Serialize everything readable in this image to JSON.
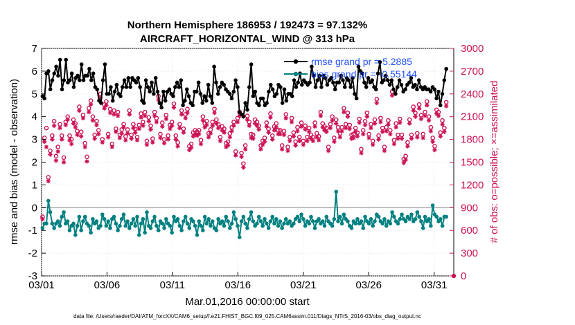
{
  "chart_data": {
    "type": "line",
    "title": [
      "Northern Hemisphere 186953 / 192473 = 97.132%",
      "AIRCRAFT_HORIZONTAL_WIND @ 313 hPa"
    ],
    "xlabel": "Mar.01,2016 00:00:00 start",
    "ylabel": "rmse and bias (model - observation)",
    "ylabel_right": "# of obs: o=possible; ×=assimilated",
    "x_ticks": [
      "03/01",
      "03/06",
      "03/11",
      "03/16",
      "03/21",
      "03/26",
      "03/31"
    ],
    "x_tick_days": [
      0,
      5,
      10,
      15,
      20,
      25,
      30
    ],
    "xlim_days": [
      0,
      31.5
    ],
    "ylim": [
      -3,
      7
    ],
    "y_ticks": [
      -3,
      -2,
      -1,
      0,
      1,
      2,
      3,
      4,
      5,
      6,
      7
    ],
    "ylim_right": [
      0,
      3000
    ],
    "y_ticks_right": [
      0,
      300,
      600,
      900,
      1200,
      1500,
      1800,
      2100,
      2400,
      2700,
      3000
    ],
    "footnote": "data file: /Users/raeder/DAI/ATM_forcXX/CAM6_setup/f.e21.FHIST_BGC.f09_025.CAM6assim.011/Diags_NTrS_2016-03/obs_diag_output.nc",
    "colors": {
      "rmse": "#000000",
      "bias": "#008080",
      "obs": "#cc1155",
      "zero": "#b0b0b0"
    },
    "series": [
      {
        "name": "rmse grand pr = 5.2885",
        "axis": "left",
        "values": [
          4.9,
          4.8,
          5.9,
          6.0,
          5.2,
          5.6,
          5.9,
          6.2,
          5.8,
          6.5,
          5.2,
          5.6,
          6.5,
          5.5,
          5.6,
          5.9,
          5.3,
          5.7,
          5.8,
          5.6,
          6.3,
          5.6,
          5.8,
          5.8,
          6.1,
          5.6,
          5.9,
          5.3,
          5.2,
          4.7,
          4.6,
          5.6,
          6.3,
          5.0,
          5.0,
          5.3,
          4.7,
          5.1,
          5.4,
          5.0,
          4.9,
          5.3,
          5.6,
          5.3,
          5.7,
          5.3,
          5.7,
          5.6,
          5.5,
          5.7,
          5.3,
          4.7,
          4.6,
          5.6,
          5.3,
          5.1,
          5.5,
          5.0,
          5.7,
          5.1,
          4.6,
          4.4,
          5.1,
          4.7,
          5.1,
          5.2,
          5.0,
          4.9,
          5.3,
          5.5,
          5.3,
          5.6,
          4.5,
          4.7,
          5.2,
          4.9,
          4.6,
          4.5,
          5.1,
          5.1,
          5.5,
          5.0,
          4.6,
          4.9,
          4.7,
          5.4,
          4.9,
          4.6,
          6.2,
          5.5,
          5.0,
          5.3,
          5.5,
          5.4,
          5.2,
          5.1,
          5.0,
          4.8,
          5.1,
          5.6,
          5.3,
          4.2,
          4.1,
          4.0,
          4.6,
          4.3,
          5.3,
          6.3,
          4.9,
          5.1,
          4.6,
          4.5,
          4.8,
          4.8,
          4.5,
          4.6,
          5.1,
          5.4,
          5.2,
          4.9,
          5.0,
          5.4,
          5.3,
          4.6,
          5.2,
          4.7,
          5.0,
          5.0,
          4.9,
          5.6,
          5.3,
          5.5,
          5.9,
          5.4,
          5.6,
          5.5,
          5.4,
          5.5,
          6.2,
          5.8,
          5.3,
          5.6,
          5.8,
          5.3,
          5.8,
          5.7,
          5.4,
          5.6,
          5.7,
          5.5,
          5.2,
          5.5,
          5.5,
          5.8,
          5.6,
          5.3,
          5.7,
          5.6,
          5.3,
          5.7,
          5.0,
          4.8,
          6.2,
          6.0,
          5.9,
          5.5,
          5.3,
          5.7,
          5.5,
          5.6,
          5.3,
          5.2,
          5.9,
          6.4,
          5.5,
          5.6,
          5.8,
          5.6,
          5.4,
          5.6,
          5.2,
          5.0,
          5.3,
          5.6,
          5.4,
          5.1,
          5.2,
          5.4,
          5.5,
          5.7,
          5.3,
          5.4,
          5.2,
          5.6,
          5.3,
          5.2,
          5.3,
          5.2,
          5.2,
          5.1,
          5.3,
          5.2,
          4.8,
          5.1,
          4.5,
          5.0,
          5.6,
          6.1
        ]
      },
      {
        "name": "bias grand pr = -0.55144",
        "axis": "left",
        "values": [
          -0.9,
          -0.7,
          -0.7,
          0.3,
          -0.2,
          -0.7,
          -0.9,
          -0.7,
          -0.6,
          -0.8,
          -0.4,
          -0.2,
          -0.7,
          -0.6,
          -1.0,
          -0.8,
          -0.7,
          -1.2,
          -0.8,
          -0.4,
          -1.0,
          -0.6,
          -0.4,
          -0.7,
          -0.8,
          -1.1,
          -0.5,
          -0.7,
          -0.6,
          -0.9,
          -0.8,
          -0.3,
          -0.5,
          -0.8,
          -0.6,
          -0.9,
          -0.5,
          -0.4,
          -0.7,
          -1.0,
          -0.8,
          -0.5,
          -0.3,
          -0.8,
          -0.6,
          -0.9,
          -0.7,
          -0.5,
          -0.8,
          -0.4,
          -1.2,
          -0.7,
          -0.5,
          -1.1,
          -0.2,
          -0.8,
          -0.9,
          -0.6,
          -0.4,
          -0.8,
          -1.0,
          -0.6,
          -0.7,
          -0.9,
          -0.5,
          -0.7,
          -0.8,
          -1.1,
          -0.4,
          -0.6,
          -0.5,
          -0.8,
          -1.0,
          -0.6,
          -0.4,
          -0.7,
          -0.9,
          -0.5,
          -0.6,
          -0.8,
          -1.2,
          -0.6,
          -0.8,
          -1.0,
          -0.4,
          -0.7,
          -0.5,
          -0.8,
          -0.6,
          -0.9,
          -1.0,
          -0.5,
          -0.7,
          -0.6,
          -0.8,
          -0.4,
          -0.6,
          -0.9,
          -0.7,
          -0.2,
          -0.5,
          -0.8,
          -1.3,
          -0.6,
          -0.4,
          -0.7,
          -0.9,
          -0.5,
          -0.2,
          -0.6,
          -0.8,
          -0.7,
          -0.4,
          -0.6,
          -0.8,
          -0.5,
          -0.7,
          -0.9,
          -0.6,
          -0.4,
          -0.7,
          -0.5,
          -0.8,
          -0.6,
          -0.9,
          -0.7,
          -0.5,
          -0.7,
          -0.6,
          -0.8,
          -0.7,
          -0.5,
          -0.4,
          -0.6,
          -0.3,
          -0.5,
          -0.8,
          -0.6,
          -0.7,
          -0.4,
          -0.6,
          -0.9,
          -0.6,
          -0.5,
          -0.7,
          -0.6,
          -0.8,
          -0.4,
          -0.6,
          -0.7,
          -0.8,
          -0.5,
          0.7,
          -0.6,
          -0.4,
          -0.7,
          -0.3,
          -0.5,
          -0.6,
          -0.8,
          -0.9,
          -0.6,
          -0.7,
          -0.5,
          -0.7,
          -0.6,
          -0.9,
          -0.4,
          -0.6,
          -0.7,
          -0.5,
          -0.8,
          -0.6,
          -0.3,
          -0.4,
          -0.6,
          -0.7,
          -0.5,
          -0.8,
          -0.6,
          -0.7,
          -0.2,
          -0.4,
          -0.6,
          -0.7,
          -0.5,
          -0.3,
          -0.5,
          -0.6,
          -0.4,
          -0.5,
          -0.3,
          -0.6,
          -0.5,
          -0.2,
          -0.4,
          -0.6,
          -0.9,
          -0.4,
          -0.6,
          -0.5,
          -0.8,
          0.1,
          -0.3,
          -0.4,
          -0.6,
          -0.5,
          -0.8,
          -0.4,
          -0.4
        ]
      },
      {
        "name": "obs possible",
        "axis": "right",
        "marker": "o",
        "values": [
          780,
          1820,
          1950,
          1300,
          1650,
          1850,
          2040,
          1580,
          1700,
          2000,
          1850,
          1560,
          2030,
          2100,
          1850,
          1800,
          2060,
          2010,
          1910,
          2230,
          1900,
          2120,
          1750,
          1570,
          2210,
          2310,
          2100,
          1860,
          2040,
          1920,
          2400,
          1800,
          2260,
          2300,
          1870,
          2200,
          1740,
          2180,
          1940,
          2160,
          1860,
          1930,
          2000,
          1840,
          1930,
          2180,
          1860,
          2000,
          1940,
          1830,
          1990,
          2140,
          2030,
          2160,
          1780,
          2090,
          1980,
          1810,
          2160,
          2080,
          2370,
          1870,
          2020,
          1800,
          2120,
          1850,
          1990,
          2030,
          2270,
          1850,
          1760,
          2000,
          2180,
          1940,
          2130,
          2200,
          1710,
          1740,
          1890,
          1920,
          1900,
          1920,
          1790,
          2100,
          2010,
          2040,
          1880,
          1930,
          2030,
          2200,
          2060,
          2000,
          1830,
          1970,
          1940,
          1750,
          1770,
          1880,
          1960,
          2030,
          1640,
          2080,
          2160,
          1620,
          1480,
          1720,
          2110,
          2030,
          1870,
          1860,
          2060,
          2030,
          1980,
          1720,
          1780,
          1820,
          2020,
          1940,
          2140,
          1850,
          1970,
          2010,
          1920,
          1920,
          1720,
          1910,
          2130,
          1700,
          1830,
          2080,
          1890,
          1770,
          1960,
          1830,
          2020,
          1780,
          1980,
          1830,
          1950,
          1860,
          1830,
          2020,
          1880,
          1840,
          2160,
          2010,
          1970,
          1950,
          1700,
          2000,
          2100,
          1820,
          2060,
          1960,
          1880,
          1960,
          2210,
          2000,
          2150,
          1990,
          1860,
          1870,
          1950,
          1890,
          2070,
          1670,
          1920,
          2040,
          2150,
          1870,
          2000,
          1780,
          2060,
          2330,
          1850,
          2080,
          1950,
          1700,
          1960,
          2050,
          1920,
          2430,
          1790,
          2010,
          1860,
          2070,
          1860,
          1540,
          1580,
          1760,
          2060,
          1860,
          2230,
          2150,
          1880,
          2260,
          2120,
          1870,
          2160,
          2300,
          2100,
          1960,
          1820,
          1710,
          2190,
          2160,
          1890,
          2050,
          1950,
          2290
        ]
      },
      {
        "name": "obs assimilated",
        "axis": "right",
        "marker": "x",
        "values": [
          750,
          1770,
          1700,
          1250,
          1600,
          1800,
          1980,
          1520,
          1640,
          1950,
          1800,
          1500,
          1990,
          2060,
          1790,
          1740,
          2010,
          1960,
          1860,
          2180,
          1840,
          2080,
          1700,
          1510,
          2160,
          2260,
          2050,
          1810,
          1990,
          1870,
          2350,
          1760,
          2210,
          2250,
          1830,
          2150,
          1700,
          2130,
          1900,
          2110,
          1820,
          1880,
          1960,
          1790,
          1880,
          2130,
          1810,
          1950,
          1890,
          1790,
          1940,
          2090,
          1980,
          2110,
          1730,
          2040,
          1930,
          1760,
          2110,
          2030,
          2320,
          1820,
          1970,
          1750,
          2070,
          1800,
          1940,
          1980,
          2220,
          1800,
          1710,
          1950,
          2130,
          1890,
          2080,
          2150,
          1660,
          1690,
          1840,
          1870,
          1850,
          1870,
          1740,
          2050,
          1960,
          1990,
          1830,
          1880,
          1980,
          2150,
          2010,
          1950,
          1780,
          1920,
          1890,
          1700,
          1720,
          1830,
          1910,
          1980,
          1590,
          2030,
          2110,
          1570,
          1430,
          1670,
          2060,
          1980,
          1820,
          1810,
          2010,
          1980,
          1930,
          1670,
          1730,
          1770,
          1970,
          1890,
          2090,
          1800,
          1920,
          1960,
          1870,
          1870,
          1670,
          1860,
          2080,
          1650,
          1780,
          2030,
          1840,
          1720,
          1910,
          1780,
          1970,
          1730,
          1930,
          1780,
          1900,
          1810,
          1780,
          1970,
          1830,
          1790,
          2110,
          1960,
          1920,
          1900,
          1650,
          1950,
          2050,
          1770,
          2010,
          1910,
          1830,
          1910,
          2160,
          1950,
          2100,
          1940,
          1810,
          1820,
          1900,
          1840,
          2020,
          1620,
          1870,
          1990,
          2100,
          1820,
          1950,
          1730,
          2010,
          2280,
          1800,
          2030,
          1900,
          1650,
          1910,
          2000,
          1870,
          2380,
          1740,
          1960,
          1810,
          2020,
          1810,
          1490,
          1530,
          1710,
          2010,
          1810,
          2180,
          2100,
          1830,
          2210,
          2070,
          1820,
          2110,
          2250,
          2050,
          1910,
          1770,
          1660,
          2140,
          2110,
          1840,
          2000,
          1900,
          2240
        ]
      }
    ]
  }
}
